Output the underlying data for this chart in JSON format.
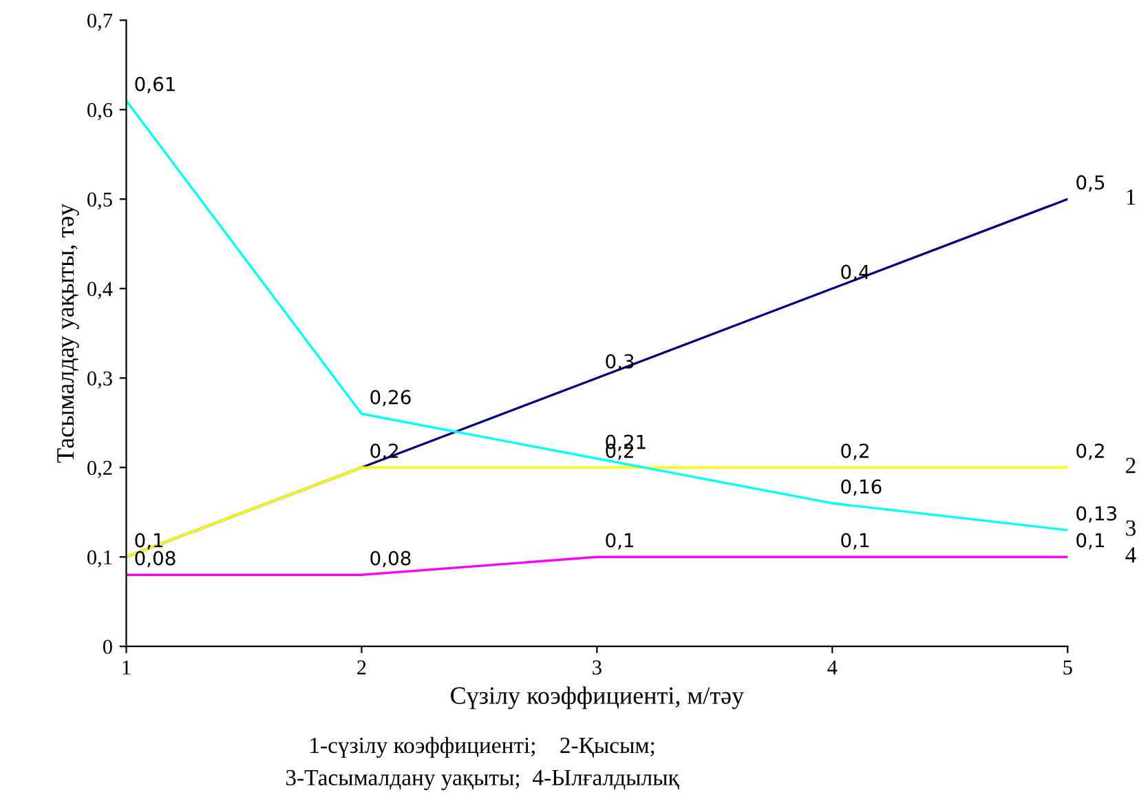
{
  "chart_data": {
    "type": "line",
    "xlabel": "Сүзілу коэффициенті, м/тәу",
    "ylabel": "Тасымалдау уақыты, тәу",
    "x": [
      1,
      2,
      3,
      4,
      5
    ],
    "series": [
      {
        "name": "1",
        "color": "#000080",
        "values": [
          0.1,
          0.2,
          0.3,
          0.4,
          0.5
        ],
        "value_labels": [
          "0,1",
          "0,2",
          "0,3",
          "0,4",
          "0,5"
        ]
      },
      {
        "name": "2",
        "color": "#ffff00",
        "values": [
          0.1,
          0.2,
          0.2,
          0.2,
          0.2
        ],
        "value_labels": [
          null,
          null,
          "0,2",
          "0,2",
          "0,2"
        ]
      },
      {
        "name": "3",
        "color": "#00ffff",
        "values": [
          0.61,
          0.26,
          0.21,
          0.16,
          0.13
        ],
        "value_labels": [
          "0,61",
          "0,26",
          "0,21",
          "0,16",
          "0,13"
        ]
      },
      {
        "name": "4",
        "color": "#ff00ff",
        "values": [
          0.08,
          0.08,
          0.1,
          0.1,
          0.1
        ],
        "value_labels": [
          "0,08",
          "0,08",
          "0,1",
          "0,1",
          "0,1"
        ]
      }
    ],
    "xlim": [
      1,
      5
    ],
    "ylim": [
      0,
      0.7
    ],
    "xticks": [
      1,
      2,
      3,
      4,
      5
    ],
    "yticks": [
      0,
      {
        "value": 0.1,
        "label": "0,1"
      },
      {
        "value": 0.2,
        "label": "0,2"
      },
      {
        "value": 0.3,
        "label": "0,3"
      },
      {
        "value": 0.4,
        "label": "0,4"
      },
      {
        "value": 0.5,
        "label": "0,5"
      },
      {
        "value": 0.6,
        "label": "0,6"
      },
      {
        "value": 0.7,
        "label": "0,7"
      }
    ],
    "grid": false,
    "legend": false,
    "marker": "none",
    "line_style": "solid",
    "annotations": [
      "1-сүзілу коэффициенті;    2-Қысым;",
      "3-Тасымалдану уақыты;  4-Ылғалдылық"
    ]
  }
}
